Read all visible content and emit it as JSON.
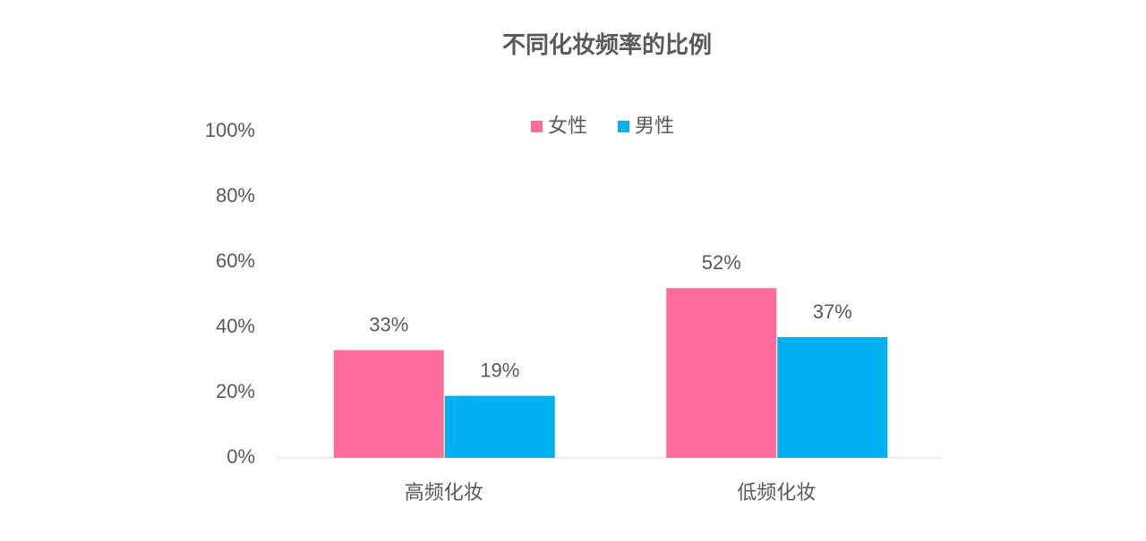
{
  "chart_data": {
    "type": "bar",
    "title": "不同化妆频率的比例",
    "categories": [
      "高频化妆",
      "低频化妆"
    ],
    "series": [
      {
        "name": "女性",
        "color": "#ff6b9a",
        "values": [
          33,
          52
        ],
        "value_labels": [
          "33%",
          "52%"
        ]
      },
      {
        "name": "男性",
        "color": "#00b0f0",
        "values": [
          19,
          37
        ],
        "value_labels": [
          "19%",
          "37%"
        ]
      }
    ],
    "ylim": [
      0,
      100
    ],
    "yticks": [
      {
        "value": 0,
        "label": "0%"
      },
      {
        "value": 20,
        "label": "20%"
      },
      {
        "value": 40,
        "label": "40%"
      },
      {
        "value": 60,
        "label": "60%"
      },
      {
        "value": 80,
        "label": "80%"
      },
      {
        "value": 100,
        "label": "100%"
      }
    ],
    "grid": false,
    "legend": "top"
  }
}
